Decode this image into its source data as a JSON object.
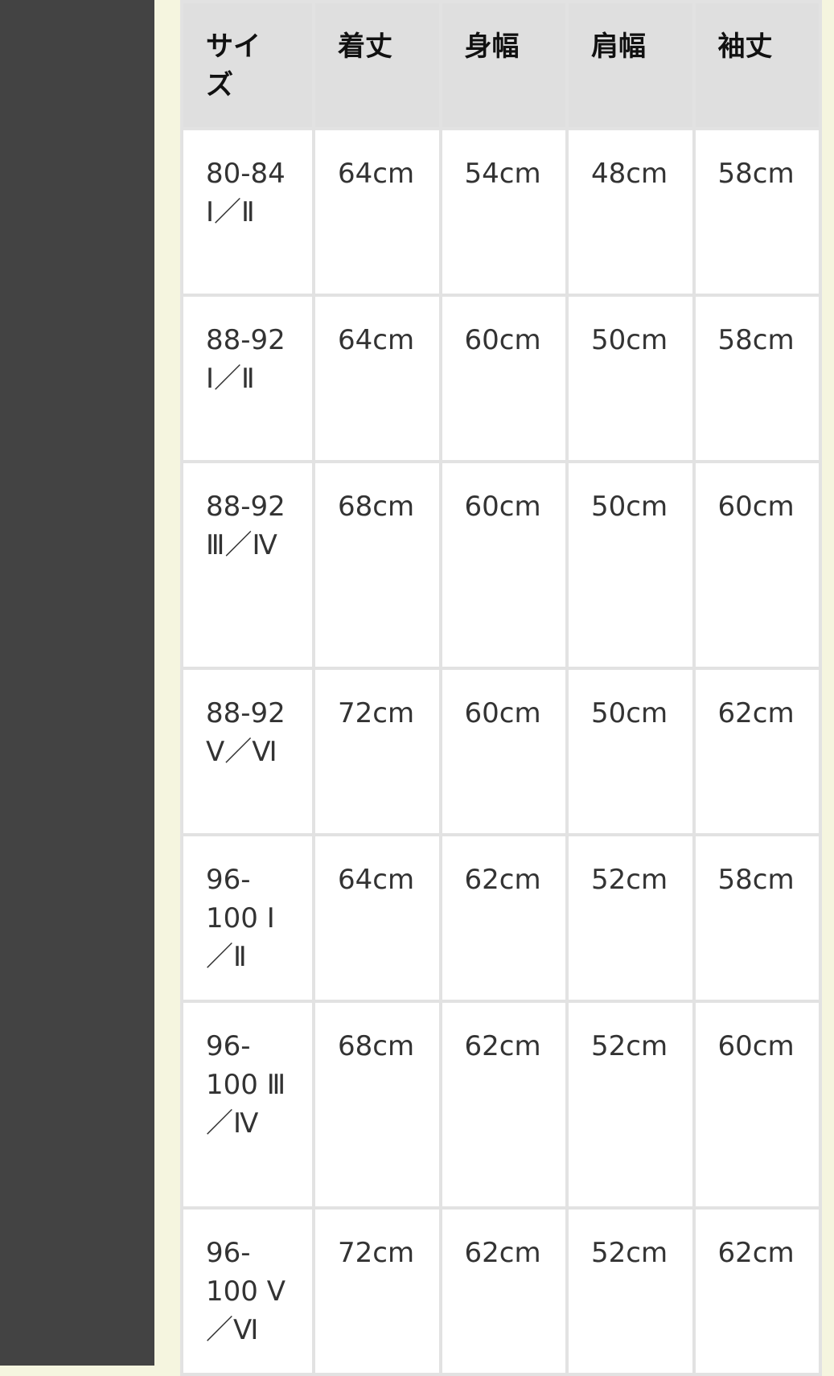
{
  "table": {
    "headers": [
      "サイズ",
      "着丈",
      "身幅",
      "肩幅",
      "袖丈"
    ],
    "rows": [
      [
        "80-84　Ⅰ／Ⅱ",
        "64cm",
        "54cm",
        "48cm",
        "58cm"
      ],
      [
        "88-92　Ⅰ／Ⅱ",
        "64cm",
        "60cm",
        "50cm",
        "58cm"
      ],
      [
        "88-92 Ⅲ／Ⅳ",
        "68cm",
        "60cm",
        "50cm",
        "60cm"
      ],
      [
        "88-92 Ⅴ／Ⅵ",
        "72cm",
        "60cm",
        "50cm",
        "62cm"
      ],
      [
        "96-100 Ⅰ／Ⅱ",
        "64cm",
        "62cm",
        "52cm",
        "58cm"
      ],
      [
        "96-100 Ⅲ／Ⅳ",
        "68cm",
        "62cm",
        "52cm",
        "60cm"
      ],
      [
        "96-100 Ⅴ／Ⅵ",
        "72cm",
        "62cm",
        "52cm",
        "62cm"
      ]
    ]
  }
}
